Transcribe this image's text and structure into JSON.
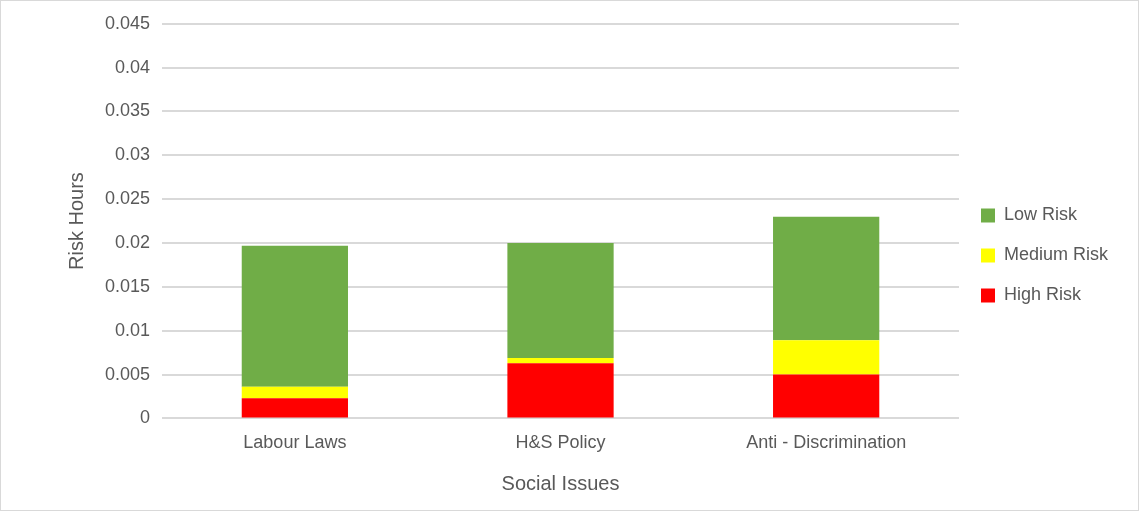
{
  "chart_data": {
    "type": "bar",
    "stacked": true,
    "xlabel": "Social Issues",
    "ylabel": "Risk Hours",
    "categories": [
      "Labour Laws",
      "H&S Policy",
      "Anti - Discrimination"
    ],
    "series": [
      {
        "name": "High Risk",
        "color": "#ff0000",
        "values": [
          0.0023,
          0.0063,
          0.005
        ]
      },
      {
        "name": "Medium Risk",
        "color": "#ffff00",
        "values": [
          0.0013,
          0.0006,
          0.0039
        ]
      },
      {
        "name": "Low Risk",
        "color": "#70ad47",
        "values": [
          0.0161,
          0.0131,
          0.0141
        ]
      }
    ],
    "ylim": [
      0,
      0.045
    ],
    "yticks": [
      0,
      0.005,
      0.01,
      0.015,
      0.02,
      0.025,
      0.03,
      0.035,
      0.04,
      0.045
    ],
    "grid": "y",
    "legend": "right"
  }
}
